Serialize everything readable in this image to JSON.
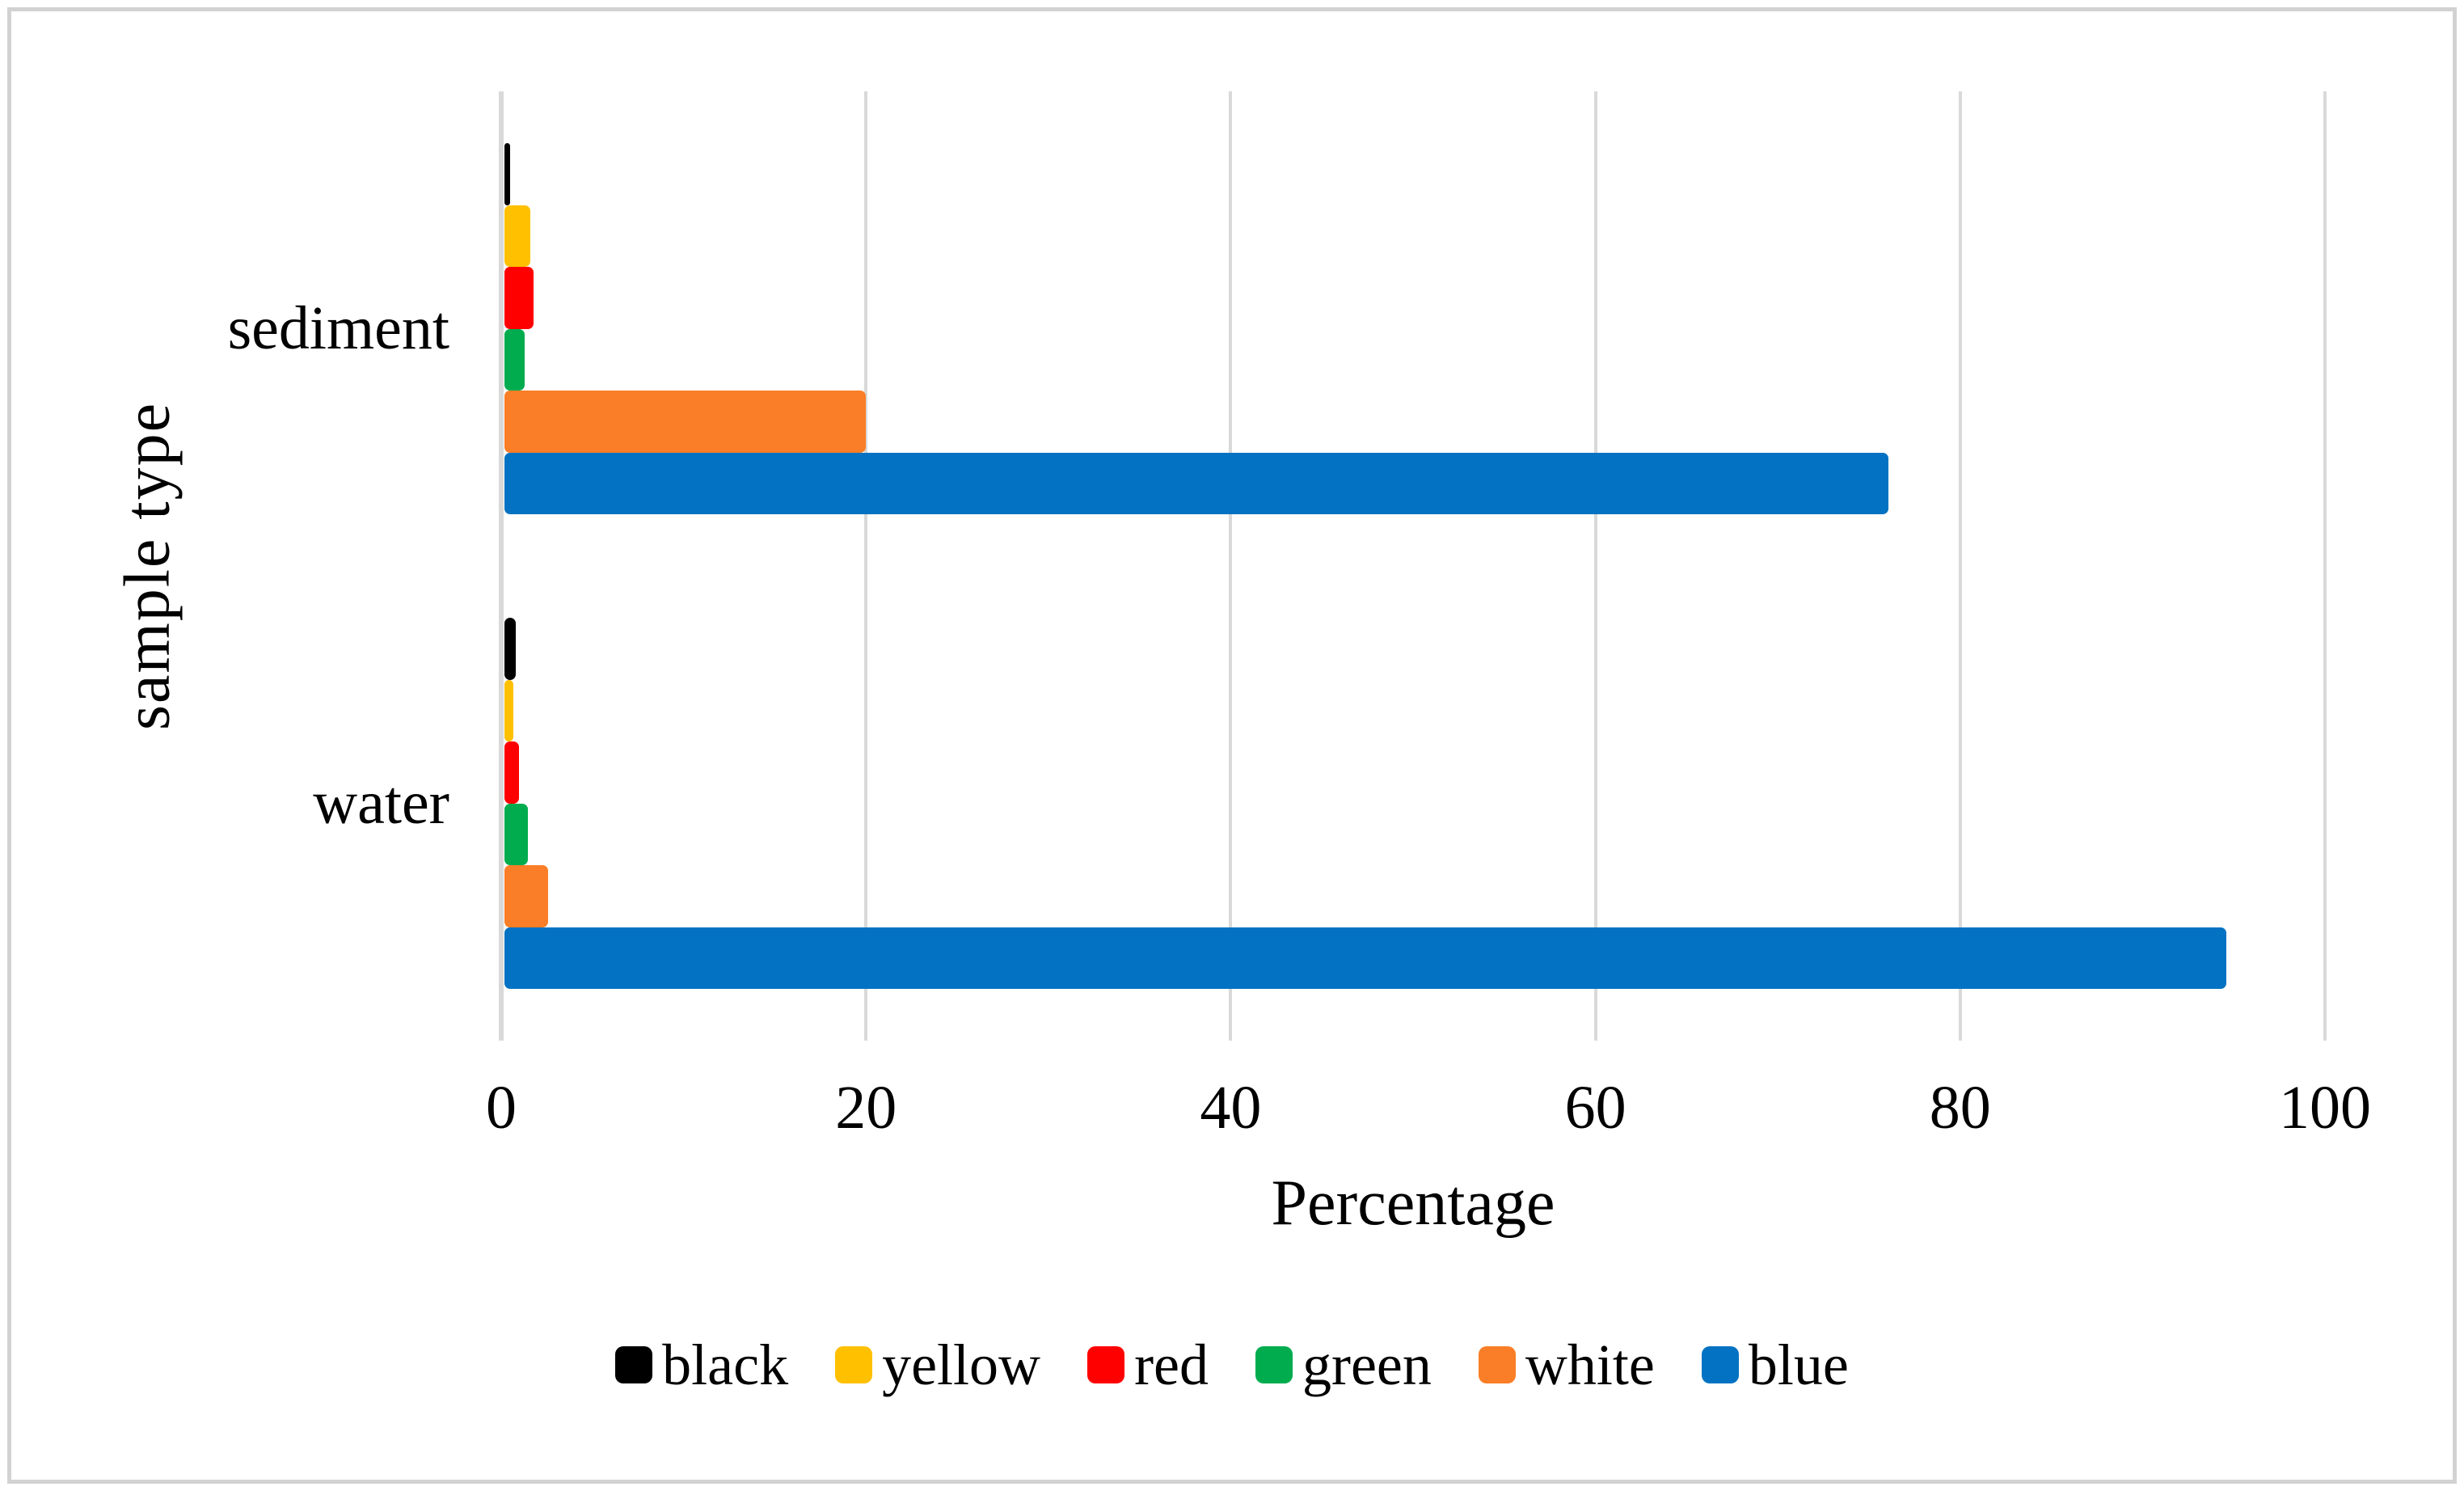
{
  "figure": {
    "x_axis_title": "Percentage",
    "y_axis_title": "sample type"
  },
  "chart_data": {
    "type": "bar",
    "orientation": "horizontal",
    "grouped": true,
    "categories": [
      "sediment",
      "water"
    ],
    "series": [
      {
        "name": "black",
        "color": "#000000",
        "values": [
          0.3,
          0.6
        ]
      },
      {
        "name": "yellow",
        "color": "#FFC000",
        "values": [
          1.4,
          0.5
        ]
      },
      {
        "name": "red",
        "color": "#FF0000",
        "values": [
          1.6,
          0.8
        ]
      },
      {
        "name": "green",
        "color": "#00AC4E",
        "values": [
          1.1,
          1.3
        ]
      },
      {
        "name": "white",
        "color": "#F97E27",
        "values": [
          19.8,
          2.4
        ]
      },
      {
        "name": "blue",
        "color": "#0472C2",
        "values": [
          75.9,
          94.4
        ]
      }
    ],
    "title": "",
    "xlabel": "Percentage",
    "ylabel": "sample type",
    "xlim": [
      0,
      100
    ],
    "xticks": [
      0,
      20,
      40,
      60,
      80,
      100
    ],
    "grid": true,
    "gridline_color": "#D9D9D9",
    "legend_position": "bottom",
    "legend_entries": [
      "black",
      "yellow",
      "red",
      "green",
      "white",
      "blue"
    ]
  }
}
